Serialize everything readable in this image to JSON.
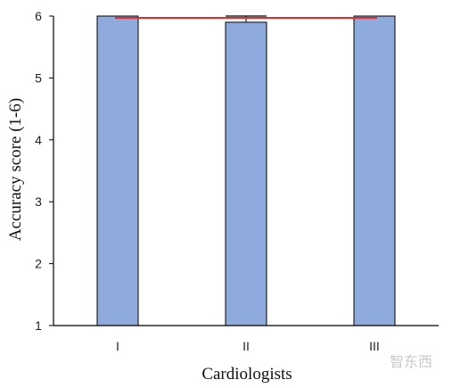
{
  "chart_data": {
    "type": "bar",
    "title": "",
    "xlabel": "Cardiologists",
    "ylabel": "Accuracy score (1-6)",
    "categories": [
      "I",
      "II",
      "III"
    ],
    "values": [
      6.0,
      5.9,
      6.0
    ],
    "error_upper": [
      6.0,
      6.0,
      6.0
    ],
    "reference_line": 5.97,
    "ylim": [
      1,
      6
    ],
    "yticks": [
      "1",
      "2",
      "3",
      "4",
      "5",
      "6"
    ],
    "grid": false,
    "legend": "none",
    "colors": {
      "bar": "#8faadc",
      "bar_edge": "#000000",
      "reference_line": "#e0302d"
    }
  },
  "watermark": {
    "text": "智东西"
  }
}
